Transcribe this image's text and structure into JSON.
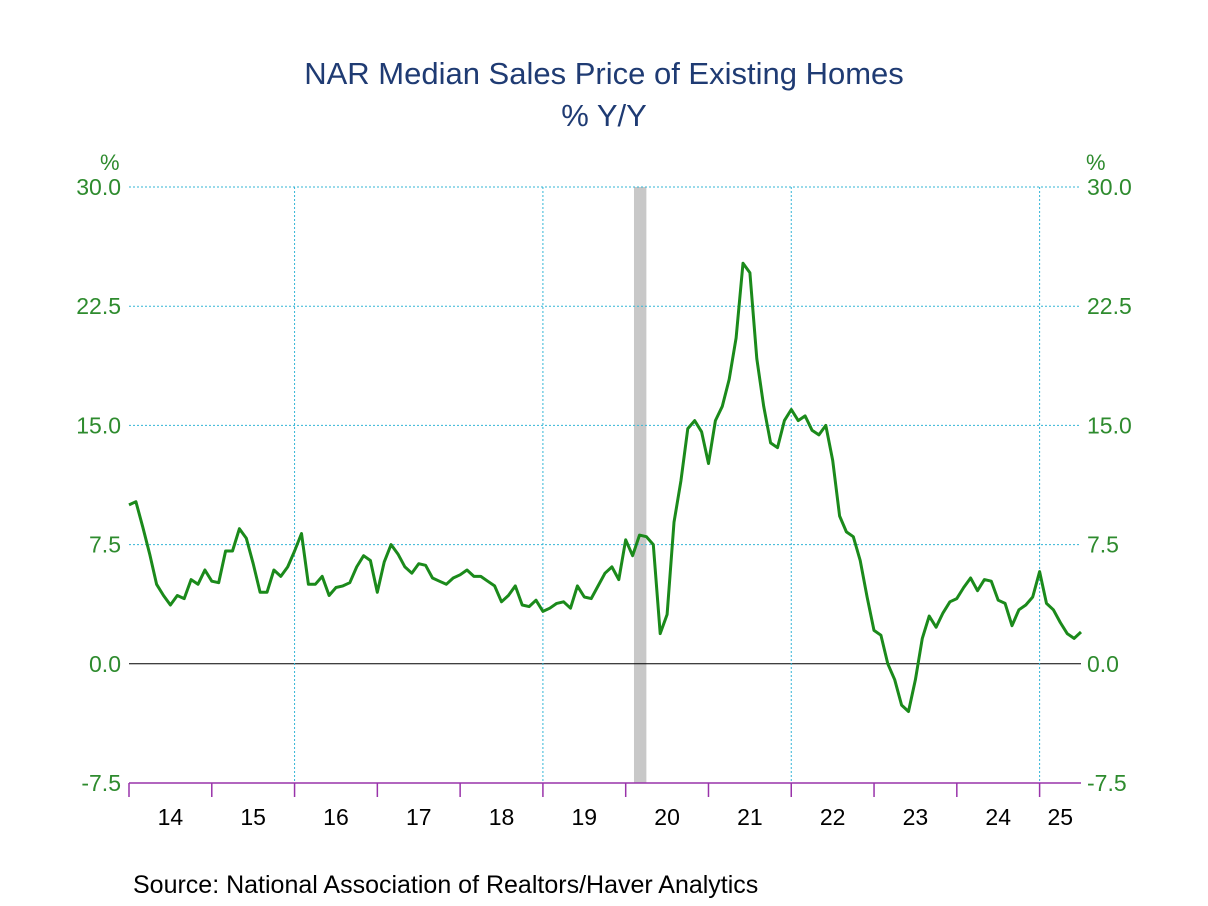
{
  "title": "NAR Median Sales Price of Existing Homes",
  "subtitle": "% Y/Y",
  "source": "Source:  National Association of Realtors/Haver Analytics",
  "colors": {
    "line": "#1b8a1b",
    "grid": "#33b5d6",
    "recession": "#c8c8c8",
    "axis": "#9933aa",
    "text_green": "#2e8b2e",
    "title": "#1f3b73"
  },
  "chart_data": {
    "type": "line",
    "title": "NAR Median Sales Price of Existing Homes",
    "subtitle": "% Y/Y",
    "ylabel_left": "%",
    "ylabel_right": "%",
    "ylim": [
      -7.5,
      30.0
    ],
    "yticks": [
      "30.0",
      "22.5",
      "15.0",
      "7.5",
      "0.0",
      "-7.5"
    ],
    "ytick_values": [
      30.0,
      22.5,
      15.0,
      7.5,
      0.0,
      -7.5
    ],
    "x_start": 2014.0,
    "x_end": 2025.5,
    "xtick_labels": [
      "14",
      "15",
      "16",
      "17",
      "18",
      "19",
      "20",
      "21",
      "22",
      "23",
      "24",
      "25"
    ],
    "vertical_gridlines_years": [
      2016,
      2019,
      2022,
      2025
    ],
    "recession_shading": [
      [
        2020.1,
        2020.25
      ]
    ],
    "grid": true,
    "series": [
      {
        "start": 2014.0,
        "frequency": "monthly",
        "values": [
          10.0,
          10.2,
          8.6,
          6.9,
          5.0,
          4.3,
          3.7,
          4.3,
          4.1,
          5.3,
          5.0,
          5.9,
          5.2,
          5.1,
          7.1,
          7.1,
          8.5,
          7.9,
          6.3,
          4.5,
          4.5,
          5.9,
          5.5,
          6.1,
          7.1,
          8.2,
          5.0,
          5.0,
          5.5,
          4.3,
          4.8,
          4.9,
          5.1,
          6.1,
          6.8,
          6.5,
          4.5,
          6.4,
          7.5,
          6.9,
          6.1,
          5.7,
          6.3,
          6.2,
          5.4,
          5.2,
          5.0,
          5.4,
          5.6,
          5.9,
          5.5,
          5.5,
          5.2,
          4.9,
          3.9,
          4.3,
          4.9,
          3.7,
          3.6,
          4.0,
          3.3,
          3.5,
          3.8,
          3.9,
          3.5,
          4.9,
          4.2,
          4.1,
          4.9,
          5.7,
          6.1,
          5.3,
          7.8,
          6.8,
          8.1,
          8.0,
          7.5,
          1.9,
          3.1,
          8.9,
          11.5,
          14.8,
          15.3,
          14.6,
          12.6,
          15.3,
          16.2,
          17.9,
          20.5,
          25.2,
          24.6,
          19.2,
          16.2,
          13.9,
          13.6,
          15.3,
          16.0,
          15.3,
          15.6,
          14.7,
          14.4,
          15.0,
          12.8,
          9.3,
          8.3,
          8.0,
          6.5,
          4.2,
          2.1,
          1.8,
          0.0,
          -1.0,
          -2.6,
          -3.0,
          -1.0,
          1.6,
          3.0,
          2.3,
          3.2,
          3.9,
          4.1,
          4.8,
          5.4,
          4.6,
          5.3,
          5.2,
          4.0,
          3.8,
          2.4,
          3.4,
          3.7,
          4.2,
          5.8,
          3.8,
          3.4,
          2.6,
          1.9,
          1.6,
          2.0
        ]
      }
    ]
  }
}
